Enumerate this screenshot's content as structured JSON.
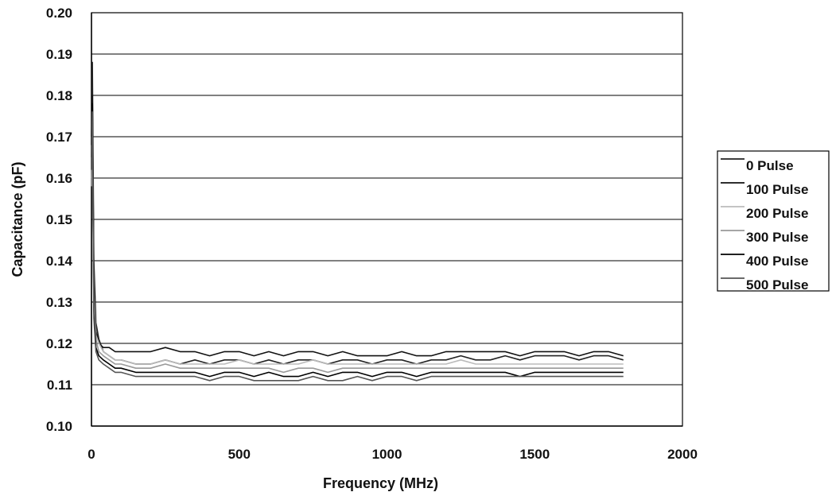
{
  "chart_data": {
    "type": "line",
    "xlabel": "Frequency (MHz)",
    "ylabel": "Capacitance (pF)",
    "xlim": [
      0,
      2000
    ],
    "ylim": [
      0.1,
      0.2
    ],
    "xticks": [
      0,
      500,
      1000,
      1500,
      2000
    ],
    "yticks": [
      0.1,
      0.11,
      0.12,
      0.13,
      0.14,
      0.15,
      0.16,
      0.17,
      0.18,
      0.19,
      0.2
    ],
    "ytick_labels": [
      "0.10",
      "0.11",
      "0.12",
      "0.13",
      "0.14",
      "0.15",
      "0.16",
      "0.17",
      "0.18",
      "0.19",
      "0.20"
    ],
    "grid": "horizontal",
    "legend_position": "right",
    "x": [
      0,
      3,
      8,
      15,
      25,
      40,
      60,
      80,
      100,
      150,
      200,
      250,
      300,
      350,
      400,
      450,
      500,
      550,
      600,
      650,
      700,
      750,
      800,
      850,
      900,
      950,
      1000,
      1050,
      1100,
      1150,
      1200,
      1250,
      1300,
      1350,
      1400,
      1450,
      1500,
      1550,
      1600,
      1650,
      1700,
      1750,
      1800
    ],
    "series": [
      {
        "name": "0 Pulse",
        "color": "#222222",
        "values": [
          0.165,
          0.188,
          0.14,
          0.125,
          0.121,
          0.118,
          0.117,
          0.116,
          0.116,
          0.115,
          0.115,
          0.116,
          0.115,
          0.116,
          0.115,
          0.116,
          0.116,
          0.115,
          0.116,
          0.115,
          0.116,
          0.116,
          0.115,
          0.116,
          0.116,
          0.115,
          0.116,
          0.116,
          0.115,
          0.116,
          0.116,
          0.117,
          0.116,
          0.116,
          0.117,
          0.116,
          0.117,
          0.117,
          0.117,
          0.116,
          0.117,
          0.117,
          0.116
        ]
      },
      {
        "name": "100 Pulse",
        "color": "#111111",
        "values": [
          0.17,
          0.18,
          0.135,
          0.123,
          0.12,
          0.119,
          0.119,
          0.118,
          0.118,
          0.118,
          0.118,
          0.119,
          0.118,
          0.118,
          0.117,
          0.118,
          0.118,
          0.117,
          0.118,
          0.117,
          0.118,
          0.118,
          0.117,
          0.118,
          0.117,
          0.117,
          0.117,
          0.118,
          0.117,
          0.117,
          0.118,
          0.118,
          0.118,
          0.118,
          0.118,
          0.117,
          0.118,
          0.118,
          0.118,
          0.117,
          0.118,
          0.118,
          0.117
        ]
      },
      {
        "name": "200 Pulse",
        "color": "#bbbbbb",
        "values": [
          0.16,
          0.175,
          0.132,
          0.122,
          0.12,
          0.118,
          0.117,
          0.116,
          0.116,
          0.115,
          0.115,
          0.116,
          0.115,
          0.115,
          0.115,
          0.115,
          0.116,
          0.115,
          0.115,
          0.115,
          0.115,
          0.116,
          0.115,
          0.115,
          0.115,
          0.115,
          0.115,
          0.115,
          0.115,
          0.115,
          0.115,
          0.116,
          0.115,
          0.115,
          0.115,
          0.115,
          0.115,
          0.115,
          0.115,
          0.115,
          0.115,
          0.115,
          0.115
        ]
      },
      {
        "name": "300 Pulse",
        "color": "#999999",
        "values": [
          0.158,
          0.172,
          0.13,
          0.121,
          0.118,
          0.117,
          0.116,
          0.115,
          0.115,
          0.114,
          0.114,
          0.115,
          0.114,
          0.114,
          0.114,
          0.114,
          0.114,
          0.114,
          0.114,
          0.113,
          0.114,
          0.114,
          0.113,
          0.114,
          0.114,
          0.114,
          0.114,
          0.114,
          0.114,
          0.114,
          0.114,
          0.114,
          0.114,
          0.114,
          0.114,
          0.114,
          0.114,
          0.114,
          0.114,
          0.114,
          0.114,
          0.114,
          0.114
        ]
      },
      {
        "name": "400 Pulse",
        "color": "#000000",
        "values": [
          0.168,
          0.178,
          0.128,
          0.119,
          0.117,
          0.116,
          0.115,
          0.114,
          0.114,
          0.113,
          0.113,
          0.113,
          0.113,
          0.113,
          0.112,
          0.113,
          0.113,
          0.112,
          0.113,
          0.112,
          0.112,
          0.113,
          0.112,
          0.113,
          0.113,
          0.112,
          0.113,
          0.113,
          0.112,
          0.113,
          0.113,
          0.113,
          0.113,
          0.113,
          0.113,
          0.112,
          0.113,
          0.113,
          0.113,
          0.113,
          0.113,
          0.113,
          0.113
        ]
      },
      {
        "name": "500 Pulse",
        "color": "#555555",
        "values": [
          0.162,
          0.176,
          0.126,
          0.118,
          0.116,
          0.115,
          0.114,
          0.113,
          0.113,
          0.112,
          0.112,
          0.112,
          0.112,
          0.112,
          0.111,
          0.112,
          0.112,
          0.111,
          0.111,
          0.111,
          0.111,
          0.112,
          0.111,
          0.111,
          0.112,
          0.111,
          0.112,
          0.112,
          0.111,
          0.112,
          0.112,
          0.112,
          0.112,
          0.112,
          0.112,
          0.112,
          0.112,
          0.112,
          0.112,
          0.112,
          0.112,
          0.112,
          0.112
        ]
      }
    ]
  }
}
